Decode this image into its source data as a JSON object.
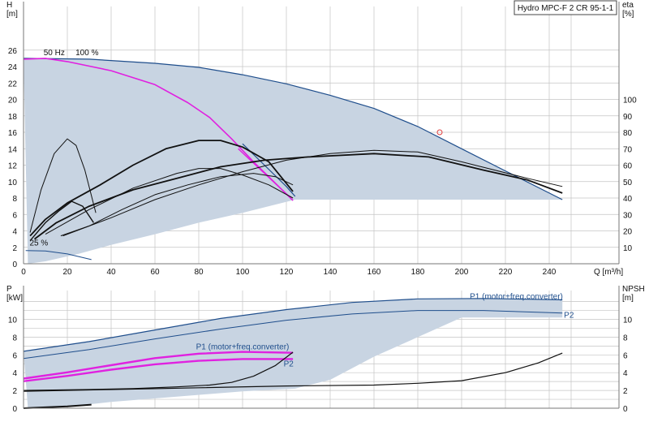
{
  "colors": {
    "envelope": "#c8d4e2",
    "blue": "#1f4e8c",
    "magenta": "#e020e0",
    "black": "#111111",
    "duty_marker": "#e04040",
    "grid": "#c4c4c4"
  },
  "chart_data": [
    {
      "type": "line",
      "title": "Hydro MPC-F 2 CR 95-1-1",
      "xlabel": "Q [m³/h]",
      "ylabel": "H\n[m]",
      "y2label": "eta\n[%]",
      "xlim": [
        0,
        250
      ],
      "ylim": [
        0,
        28
      ],
      "y2lim": [
        0,
        140
      ],
      "x_ticks": [
        0,
        20,
        40,
        60,
        80,
        100,
        120,
        140,
        160,
        180,
        200,
        220,
        240
      ],
      "y_ticks": [
        0,
        2,
        4,
        6,
        8,
        10,
        12,
        14,
        16,
        18,
        20,
        22,
        24,
        26
      ],
      "y2_ticks": [
        10,
        20,
        30,
        40,
        50,
        60,
        70,
        80,
        90,
        100
      ],
      "grid": true,
      "annotations": [
        {
          "text": "50 Hz",
          "x": 14,
          "y": 25.4
        },
        {
          "text": "100 %",
          "x": 29,
          "y": 25.4
        },
        {
          "text": "25 %",
          "x": 7,
          "y": 2.2
        }
      ],
      "duty_point": {
        "x": 190,
        "y": 16
      },
      "envelope": {
        "top": [
          [
            0,
            25
          ],
          [
            30,
            24.9
          ],
          [
            60,
            24.4
          ],
          [
            80,
            23.9
          ],
          [
            100,
            23
          ],
          [
            120,
            21.9
          ],
          [
            140,
            20.5
          ],
          [
            160,
            18.9
          ],
          [
            180,
            16.7
          ],
          [
            200,
            14
          ],
          [
            220,
            11.3
          ],
          [
            246,
            7.8
          ]
        ],
        "bottom": [
          [
            246,
            7.8
          ],
          [
            124,
            7.8
          ],
          [
            100,
            6.2
          ],
          [
            80,
            5
          ],
          [
            60,
            3.6
          ],
          [
            40,
            2.3
          ],
          [
            25,
            1.2
          ],
          [
            10,
            0.3
          ],
          [
            2,
            0
          ]
        ],
        "left": [
          [
            0,
            25
          ],
          [
            0,
            0
          ]
        ]
      },
      "series": [
        {
          "style": "blue",
          "width": 1.2,
          "axis": "H",
          "points": [
            [
              0,
              25
            ],
            [
              30,
              24.9
            ],
            [
              60,
              24.4
            ],
            [
              80,
              23.9
            ],
            [
              100,
              23
            ],
            [
              120,
              21.9
            ],
            [
              140,
              20.5
            ],
            [
              160,
              18.9
            ],
            [
              180,
              16.7
            ],
            [
              200,
              14
            ],
            [
              220,
              11.3
            ],
            [
              246,
              7.8
            ]
          ]
        },
        {
          "style": "blue",
          "width": 1.2,
          "axis": "H",
          "points": [
            [
              100,
              14.6
            ],
            [
              110,
              12
            ],
            [
              120,
              9.4
            ],
            [
              124,
              8.2
            ]
          ]
        },
        {
          "style": "blue",
          "width": 1,
          "axis": "H",
          "points": [
            [
              1,
              1.6
            ],
            [
              10,
              1.55
            ],
            [
              20,
              1.2
            ],
            [
              31,
              0.5
            ]
          ]
        },
        {
          "style": "magenta",
          "width": 1.6,
          "axis": "H",
          "points": [
            [
              0,
              24.9
            ],
            [
              10,
              25
            ],
            [
              20,
              24.6
            ],
            [
              40,
              23.5
            ],
            [
              60,
              21.8
            ],
            [
              75,
              19.6
            ],
            [
              85,
              17.8
            ],
            [
              95,
              15.2
            ],
            [
              105,
              12.4
            ],
            [
              115,
              9.8
            ],
            [
              123,
              7.7
            ]
          ]
        },
        {
          "style": "magenta",
          "width": 1.4,
          "axis": "H",
          "points": [
            [
              98,
              14
            ],
            [
              106,
              12
            ],
            [
              114,
              10
            ],
            [
              122,
              8
            ]
          ]
        },
        {
          "style": "black",
          "width": 1.8,
          "axis": "eta",
          "points": [
            [
              3,
              17
            ],
            [
              10,
              27
            ],
            [
              20,
              37
            ],
            [
              35,
              48
            ],
            [
              50,
              60
            ],
            [
              65,
              70
            ],
            [
              80,
              75
            ],
            [
              90,
              75
            ],
            [
              100,
              71
            ],
            [
              112,
              62
            ],
            [
              123,
              44
            ]
          ]
        },
        {
          "style": "black",
          "width": 1.8,
          "axis": "eta",
          "points": [
            [
              5,
              15
            ],
            [
              15,
              25
            ],
            [
              30,
              35
            ],
            [
              50,
              45
            ],
            [
              70,
              52
            ],
            [
              90,
              59
            ],
            [
              110,
              63
            ],
            [
              130,
              65
            ],
            [
              160,
              67
            ],
            [
              185,
              65
            ],
            [
              210,
              57
            ],
            [
              230,
              51
            ],
            [
              246,
              43
            ]
          ]
        },
        {
          "style": "black",
          "width": 1,
          "axis": "eta",
          "points": [
            [
              10,
              18
            ],
            [
              30,
              33
            ],
            [
              50,
              46
            ],
            [
              70,
              55
            ],
            [
              80,
              58
            ],
            [
              90,
              58
            ],
            [
              100,
              54
            ],
            [
              112,
              48
            ],
            [
              123,
              40
            ]
          ]
        },
        {
          "style": "black",
          "width": 1,
          "axis": "eta",
          "points": [
            [
              18,
              17
            ],
            [
              40,
              28
            ],
            [
              60,
              39
            ],
            [
              80,
              48
            ],
            [
              100,
              56
            ],
            [
              120,
              63
            ],
            [
              140,
              67
            ],
            [
              160,
              69
            ],
            [
              180,
              68
            ],
            [
              200,
              62
            ],
            [
              230,
              52
            ],
            [
              246,
              47
            ]
          ]
        },
        {
          "style": "black",
          "width": 1,
          "axis": "eta",
          "points": [
            [
              17,
              17
            ],
            [
              30,
              23
            ],
            [
              45,
              33
            ],
            [
              60,
              42
            ],
            [
              75,
              48
            ],
            [
              90,
              53
            ],
            [
              105,
              55
            ],
            [
              115,
              53
            ],
            [
              123,
              48
            ]
          ]
        },
        {
          "style": "black",
          "width": 1,
          "axis": "eta",
          "points": [
            [
              3,
              19
            ],
            [
              8,
              45
            ],
            [
              14,
              67
            ],
            [
              20,
              76
            ],
            [
              24,
              72
            ],
            [
              28,
              57
            ],
            [
              33,
              31
            ]
          ]
        },
        {
          "style": "black",
          "width": 1.4,
          "axis": "eta",
          "points": [
            [
              3,
              14
            ],
            [
              10,
              25
            ],
            [
              16,
              32
            ],
            [
              22,
              38
            ],
            [
              27,
              35
            ],
            [
              32,
              25
            ]
          ]
        }
      ]
    },
    {
      "type": "line",
      "xlabel": "Q [m³/h]",
      "ylabel": "P\n[kW]",
      "y2label": "NPSH\n[m]",
      "xlim": [
        0,
        250
      ],
      "ylim": [
        0,
        13
      ],
      "y_ticks": [
        0,
        2,
        4,
        6,
        8,
        10
      ],
      "y2_ticks": [
        0,
        2,
        4,
        6,
        8,
        10
      ],
      "grid": true,
      "labels": [
        {
          "text": "P1 (motor+freq.converter)",
          "x": 225,
          "y": 12.3
        },
        {
          "text": "P2",
          "x": 249,
          "y": 10.2
        },
        {
          "text": "P1 (motor+freq.converter)",
          "x": 100,
          "y": 6.6
        },
        {
          "text": "P2",
          "x": 121,
          "y": 4.7
        }
      ],
      "envelope": {
        "top": [
          [
            0,
            6.4
          ],
          [
            30,
            7.5
          ],
          [
            60,
            8.8
          ],
          [
            90,
            10.1
          ],
          [
            120,
            11.1
          ],
          [
            150,
            11.9
          ],
          [
            180,
            12.3
          ],
          [
            210,
            12.35
          ],
          [
            246,
            12.2
          ]
        ],
        "bottom": [
          [
            246,
            10.2
          ],
          [
            200,
            10.2
          ],
          [
            180,
            8
          ],
          [
            160,
            5.8
          ],
          [
            140,
            3.2
          ],
          [
            124,
            2.2
          ],
          [
            100,
            1.9
          ],
          [
            70,
            1.3
          ],
          [
            40,
            0.7
          ],
          [
            25,
            0.3
          ],
          [
            10,
            0.05
          ],
          [
            2,
            0
          ]
        ]
      },
      "series": [
        {
          "style": "blue",
          "width": 1.2,
          "points": [
            [
              0,
              6.4
            ],
            [
              30,
              7.5
            ],
            [
              60,
              8.8
            ],
            [
              90,
              10.1
            ],
            [
              120,
              11.1
            ],
            [
              150,
              11.9
            ],
            [
              180,
              12.3
            ],
            [
              210,
              12.35
            ],
            [
              246,
              12.2
            ]
          ]
        },
        {
          "style": "blue",
          "width": 1,
          "points": [
            [
              0,
              5.6
            ],
            [
              30,
              6.6
            ],
            [
              60,
              7.8
            ],
            [
              90,
              8.9
            ],
            [
              120,
              9.9
            ],
            [
              150,
              10.6
            ],
            [
              180,
              11
            ],
            [
              210,
              11
            ],
            [
              246,
              10.7
            ]
          ]
        },
        {
          "style": "magenta",
          "width": 1.6,
          "points": [
            [
              0,
              3.3
            ],
            [
              20,
              4
            ],
            [
              40,
              4.8
            ],
            [
              60,
              5.6
            ],
            [
              80,
              6.1
            ],
            [
              100,
              6.3
            ],
            [
              123,
              6.2
            ]
          ]
        },
        {
          "style": "magenta",
          "width": 1.6,
          "points": [
            [
              0,
              3
            ],
            [
              20,
              3.6
            ],
            [
              40,
              4.3
            ],
            [
              60,
              4.9
            ],
            [
              80,
              5.3
            ],
            [
              100,
              5.5
            ],
            [
              123,
              5.5
            ]
          ]
        },
        {
          "style": "magenta",
          "width": 1,
          "points": [
            [
              0,
              3.4
            ],
            [
              20,
              4.1
            ],
            [
              40,
              4.9
            ],
            [
              60,
              5.7
            ],
            [
              80,
              6.2
            ],
            [
              100,
              6.4
            ],
            [
              123,
              6.3
            ]
          ]
        },
        {
          "style": "magenta",
          "width": 1,
          "points": [
            [
              0,
              3.1
            ],
            [
              20,
              3.7
            ],
            [
              40,
              4.4
            ],
            [
              60,
              5
            ],
            [
              80,
              5.4
            ],
            [
              100,
              5.6
            ],
            [
              123,
              5.6
            ]
          ]
        },
        {
          "style": "black",
          "width": 1.2,
          "points": [
            [
              0,
              2
            ],
            [
              30,
              2.1
            ],
            [
              50,
              2.2
            ],
            [
              70,
              2.4
            ],
            [
              85,
              2.6
            ],
            [
              95,
              2.9
            ],
            [
              105,
              3.6
            ],
            [
              115,
              4.8
            ],
            [
              123,
              6.3
            ]
          ]
        },
        {
          "style": "black",
          "width": 1.2,
          "points": [
            [
              0,
              1.9
            ],
            [
              40,
              2.1
            ],
            [
              80,
              2.3
            ],
            [
              120,
              2.5
            ],
            [
              160,
              2.6
            ],
            [
              180,
              2.8
            ],
            [
              200,
              3.1
            ],
            [
              220,
              4
            ],
            [
              235,
              5.1
            ],
            [
              246,
              6.2
            ]
          ]
        },
        {
          "style": "black",
          "width": 2,
          "points": [
            [
              0,
              0
            ],
            [
              10,
              0.1
            ],
            [
              20,
              0.2
            ],
            [
              31,
              0.4
            ]
          ]
        }
      ]
    }
  ]
}
